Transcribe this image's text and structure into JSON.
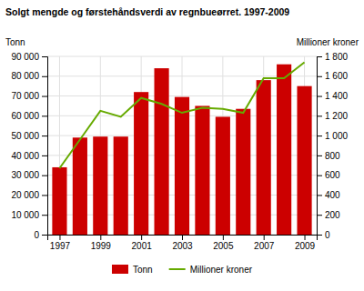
{
  "chart_data": {
    "type": "bar",
    "title": "Solgt mengde og førstehåndsverdi av regnbueørret. 1997-2009",
    "ylabel": "Tonn",
    "y2label": "Millioner kroner",
    "x": [
      1997,
      1998,
      1999,
      2000,
      2001,
      2002,
      2003,
      2004,
      2005,
      2006,
      2007,
      2008,
      2009
    ],
    "series": [
      {
        "name": "Tonn",
        "type": "bar",
        "color": "#cc0000",
        "values": [
          34000,
          49000,
          49500,
          49500,
          72000,
          84000,
          69500,
          65000,
          59500,
          63500,
          78000,
          86000,
          75000
        ]
      },
      {
        "name": "Millioner kroner",
        "type": "line",
        "color": "#66aa00",
        "axis": "y2",
        "values": [
          670,
          960,
          1250,
          1190,
          1380,
          1320,
          1230,
          1280,
          1270,
          1230,
          1580,
          1580,
          1740
        ]
      }
    ],
    "xlim": [
      1996.4,
      2009.6
    ],
    "xticks": [
      1997,
      1999,
      2001,
      2003,
      2005,
      2007,
      2009
    ],
    "ylim": [
      0,
      90000
    ],
    "yticks": [
      0,
      {
        "value": 10000,
        "label": "10 000"
      },
      {
        "value": 20000,
        "label": "20 000"
      },
      {
        "value": 30000,
        "label": "30 000"
      },
      {
        "value": 40000,
        "label": "40 000"
      },
      {
        "value": 50000,
        "label": "50 000"
      },
      {
        "value": 60000,
        "label": "60 000"
      },
      {
        "value": 70000,
        "label": "70 000"
      },
      {
        "value": 80000,
        "label": "80 000"
      },
      {
        "value": 90000,
        "label": "90 000"
      }
    ],
    "y2lim": [
      0,
      1800
    ],
    "y2ticks": [
      0,
      200,
      400,
      600,
      800,
      {
        "value": 1000,
        "label": "1 000"
      },
      {
        "value": 1200,
        "label": "1 200"
      },
      {
        "value": 1400,
        "label": "1 400"
      },
      {
        "value": 1600,
        "label": "1 600"
      },
      {
        "value": 1800,
        "label": "1 800"
      }
    ],
    "grid": true,
    "legend": "bottom"
  }
}
